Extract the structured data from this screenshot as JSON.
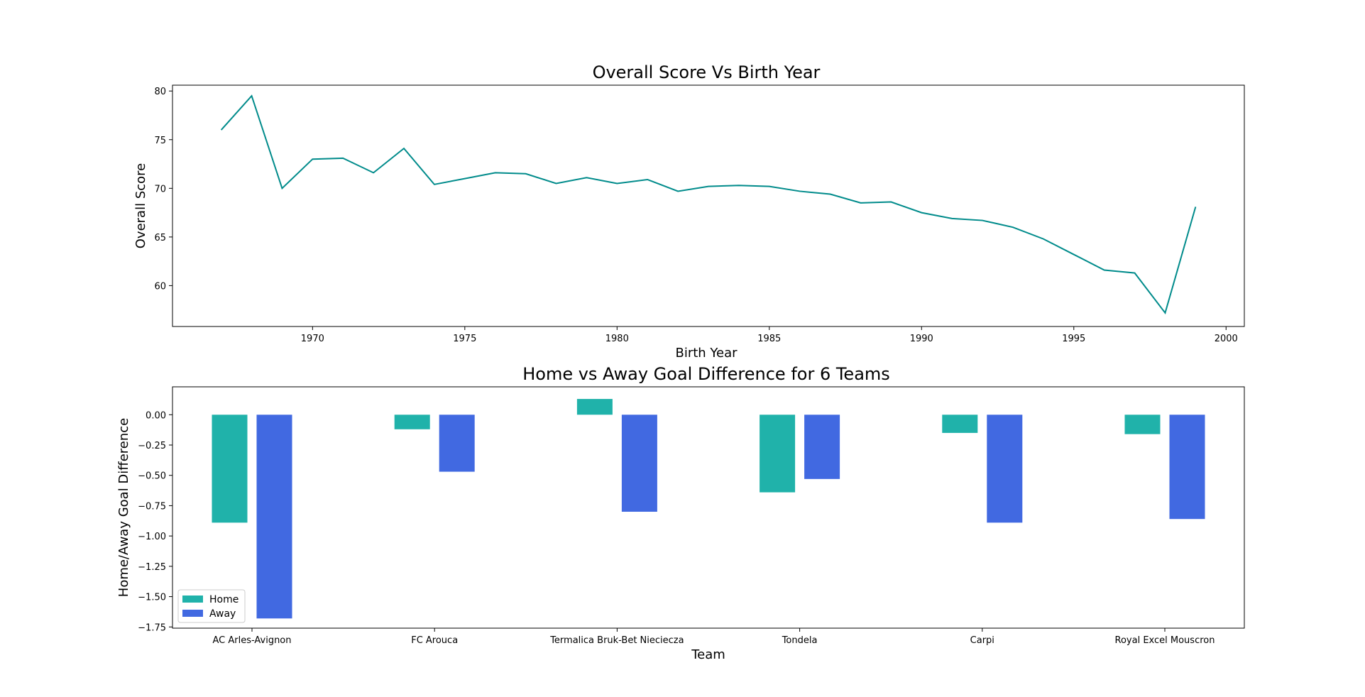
{
  "chart_data": [
    {
      "type": "line",
      "title": "Overall Score Vs Birth Year",
      "xlabel": "Birth Year",
      "ylabel": "Overall Score",
      "xlim": [
        1965.4,
        2000.6
      ],
      "ylim": [
        55.8,
        80.6
      ],
      "xticks": [
        1970,
        1975,
        1980,
        1985,
        1990,
        1995,
        2000
      ],
      "yticks": [
        60,
        65,
        70,
        75,
        80
      ],
      "grid": false,
      "color": "#008B8B",
      "x": [
        1967,
        1968,
        1969,
        1970,
        1971,
        1972,
        1973,
        1974,
        1975,
        1976,
        1977,
        1978,
        1979,
        1980,
        1981,
        1982,
        1983,
        1984,
        1985,
        1986,
        1987,
        1988,
        1989,
        1990,
        1991,
        1992,
        1993,
        1994,
        1995,
        1996,
        1997,
        1998,
        1999
      ],
      "y": [
        76.0,
        79.5,
        70.0,
        73.0,
        73.1,
        71.6,
        74.1,
        70.4,
        71.0,
        71.6,
        71.5,
        70.5,
        71.1,
        70.5,
        70.9,
        69.7,
        70.2,
        70.3,
        70.2,
        69.7,
        69.4,
        68.5,
        68.6,
        67.5,
        66.9,
        66.7,
        66.0,
        64.8,
        63.2,
        61.6,
        61.3,
        57.2,
        68.1
      ]
    },
    {
      "type": "bar",
      "title": "Home vs Away Goal Difference for 6 Teams",
      "xlabel": "Team",
      "ylabel": "Home/Away Goal Difference",
      "categories": [
        "AC Arles-Avignon",
        "FC Arouca",
        "Termalica Bruk-Bet Nieciecza",
        "Tondela",
        "Carpi",
        "Royal Excel Mouscron"
      ],
      "ylim": [
        -1.76,
        0.23
      ],
      "yticks": [
        0.0,
        -0.25,
        -0.5,
        -0.75,
        -1.0,
        -1.25,
        -1.5,
        -1.75
      ],
      "ytick_labels": [
        "0.00",
        "−0.25",
        "−0.50",
        "−0.75",
        "−1.00",
        "−1.25",
        "−1.50",
        "−1.75"
      ],
      "grid": false,
      "legend_position": "lower-left",
      "series": [
        {
          "name": "Home",
          "color": "#20B2AA",
          "values": [
            -0.89,
            -0.12,
            0.13,
            -0.64,
            -0.15,
            -0.16
          ]
        },
        {
          "name": "Away",
          "color": "#4169E1",
          "values": [
            -1.68,
            -0.47,
            -0.8,
            -0.53,
            -0.89,
            -0.86
          ]
        }
      ]
    }
  ]
}
